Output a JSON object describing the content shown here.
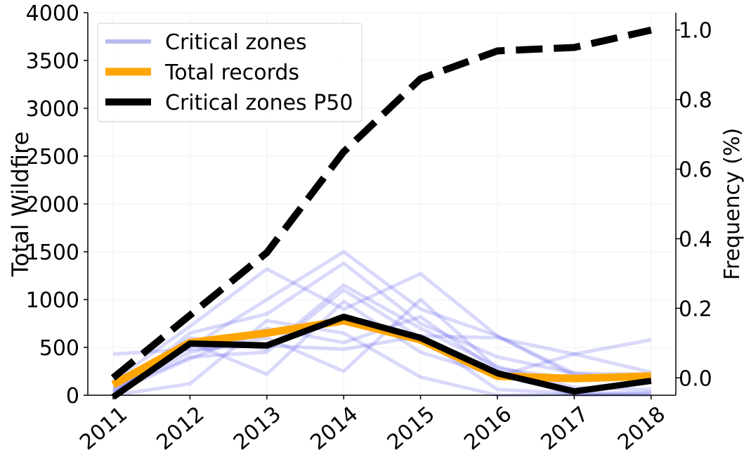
{
  "chart_data": {
    "type": "line",
    "x": [
      "2011",
      "2012",
      "2013",
      "2014",
      "2015",
      "2016",
      "2017",
      "2018"
    ],
    "ylabel": "Total Wildfire",
    "y2label": "Frequency (%)",
    "ylim": [
      0,
      4000
    ],
    "y2lim": [
      -0.05,
      1.05
    ],
    "yticks": [
      "0",
      "500",
      "1000",
      "1500",
      "2000",
      "2500",
      "3000",
      "3500",
      "4000"
    ],
    "y2ticks": [
      "0.0",
      "0.2",
      "0.4",
      "0.6",
      "0.8",
      "1.0"
    ],
    "grid": true,
    "legend_position": "top-left",
    "legend": [
      {
        "label": "Critical zones",
        "color": "#b9b9f0"
      },
      {
        "label": "Total records",
        "color": "#ffa500"
      },
      {
        "label": "Critical zones P50",
        "color": "#000000"
      }
    ],
    "zones": [
      [
        430,
        480,
        520,
        480,
        620,
        600,
        430,
        580
      ],
      [
        150,
        720,
        1320,
        900,
        1270,
        620,
        200,
        160
      ],
      [
        80,
        500,
        1000,
        1500,
        900,
        620,
        230,
        220
      ],
      [
        0,
        650,
        850,
        1380,
        750,
        400,
        230,
        150
      ],
      [
        20,
        600,
        480,
        1150,
        700,
        300,
        80,
        60
      ],
      [
        50,
        400,
        450,
        1100,
        600,
        60,
        20,
        30
      ],
      [
        120,
        550,
        220,
        980,
        450,
        200,
        430,
        240
      ],
      [
        0,
        120,
        780,
        650,
        190,
        0,
        10,
        0
      ],
      [
        60,
        450,
        600,
        250,
        1000,
        280,
        170,
        200
      ],
      [
        30,
        380,
        700,
        550,
        820,
        250,
        0,
        20
      ]
    ],
    "total_records": [
      110,
      550,
      650,
      780,
      580,
      200,
      175,
      200
    ],
    "p50": [
      -20,
      540,
      520,
      820,
      600,
      230,
      40,
      150
    ],
    "frequency": [
      0.0,
      0.18,
      0.36,
      0.65,
      0.86,
      0.94,
      0.95,
      1.0
    ]
  }
}
